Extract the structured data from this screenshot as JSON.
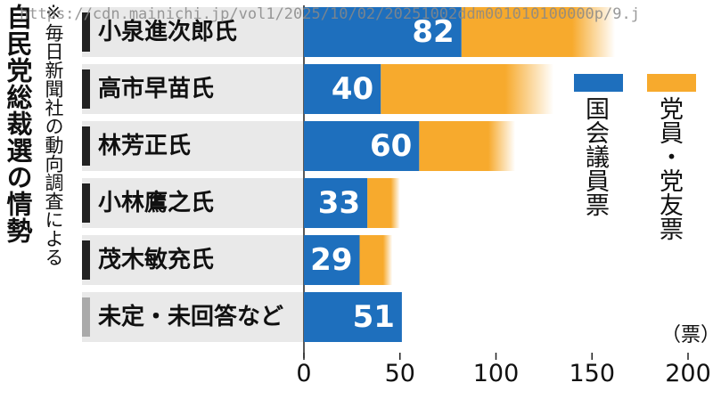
{
  "title": "自民党総裁選の情勢",
  "note": "※毎日新聞社の動向調査による",
  "url_overlay": "https://cdn.mainichi.jp/vol1/2025/10/02/20251002ddm001010100000p/9.j",
  "unit": "（票）",
  "colors": {
    "blue": "#1e6fbd",
    "orange": "#f7aa2d",
    "panel": "#e9e9e9",
    "marker_dark": "#222222",
    "marker_gray": "#aaaaaa"
  },
  "legend": {
    "diet": "国会議員票",
    "members": "党員・党友票"
  },
  "chart_data": {
    "type": "bar",
    "orientation": "horizontal",
    "stacked": true,
    "categories": [
      "小泉進次郎氏",
      "高市早苗氏",
      "林芳正氏",
      "小林鷹之氏",
      "茂木敏充氏",
      "未定・未回答など"
    ],
    "series": [
      {
        "name": "国会議員票",
        "values": [
          82,
          40,
          60,
          33,
          29,
          51
        ]
      },
      {
        "name": "党員・党友票",
        "values": [
          80,
          90,
          50,
          17,
          17,
          0
        ]
      }
    ],
    "series_note": "党員・党友票 segments fade out (values approximate, unlabeled)",
    "xlim": [
      0,
      200
    ],
    "xticks": [
      0,
      50,
      100,
      150,
      200
    ],
    "value_labels": [
      "82",
      "40",
      "60",
      "33",
      "29",
      "51"
    ]
  }
}
